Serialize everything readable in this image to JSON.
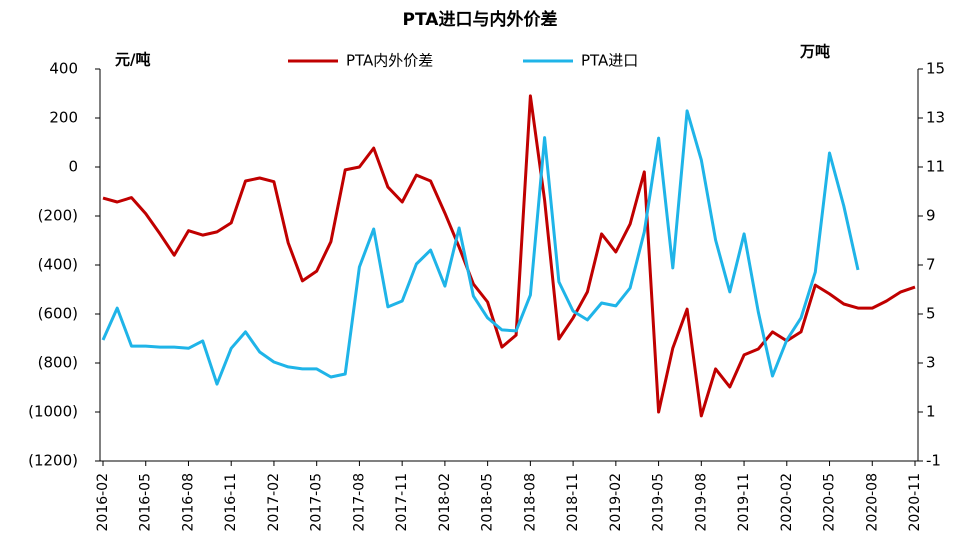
{
  "chart_data": {
    "type": "line",
    "title": "PTA进口与内外价差",
    "y_label": "元/吨",
    "y2_label": "万吨",
    "categories": [
      "2016-02",
      null,
      null,
      "2016-05",
      null,
      null,
      "2016-08",
      null,
      null,
      "2016-11",
      null,
      null,
      "2017-02",
      null,
      null,
      "2017-05",
      null,
      null,
      "2017-08",
      null,
      null,
      "2017-11",
      null,
      null,
      "2018-02",
      null,
      null,
      "2018-05",
      null,
      null,
      "2018-08",
      null,
      null,
      "2018-11",
      null,
      null,
      "2019-02",
      null,
      null,
      "2019-05",
      null,
      null,
      "2019-08",
      null,
      null,
      "2019-11",
      null,
      null,
      "2020-02",
      null,
      null,
      "2020-05",
      null,
      null,
      "2020-08",
      null,
      null,
      "2020-11"
    ],
    "series": [
      {
        "name": "PTA内外价差",
        "color": "#c00000",
        "values": [
          -127,
          -143,
          -125,
          -190,
          -273,
          -360,
          -260,
          -278,
          -265,
          -228,
          -57,
          -45,
          -60,
          -310,
          -465,
          -425,
          -305,
          -12,
          0,
          77,
          -82,
          -143,
          -33,
          -57,
          -188,
          -327,
          -478,
          -551,
          -735,
          -686,
          290,
          -135,
          -702,
          -616,
          -510,
          -273,
          -347,
          -233,
          -20,
          -1000,
          -739,
          -580,
          -1016,
          -824,
          -898,
          -767,
          -743,
          -673,
          -710,
          -673,
          -482,
          -518,
          -559,
          -576,
          -576,
          -547,
          -510,
          -490
        ]
      },
      {
        "name": "PTA进口",
        "color": "#1fb4e8",
        "axis": "y2",
        "values": [
          3.94,
          5.24,
          3.69,
          3.69,
          3.65,
          3.65,
          3.6,
          3.9,
          2.14,
          3.6,
          4.27,
          3.45,
          3.04,
          2.84,
          2.76,
          2.76,
          2.43,
          2.55,
          6.92,
          8.47,
          5.29,
          5.53,
          7.04,
          7.61,
          6.14,
          8.51,
          5.73,
          4.84,
          4.35,
          4.31,
          5.78,
          12.2,
          6.31,
          5.12,
          4.76,
          5.45,
          5.33,
          6.06,
          8.35,
          12.18,
          6.88,
          13.29,
          11.29,
          8.02,
          5.9,
          8.27,
          5.08,
          2.47,
          3.94,
          4.84,
          6.71,
          11.57,
          9.41,
          6.8,
          null,
          null,
          null,
          null
        ]
      }
    ],
    "ylim": [
      -1200,
      400
    ],
    "yticks": [
      {
        "value": -1200,
        "label": "(1200)"
      },
      {
        "value": -1000,
        "label": "(1000)"
      },
      {
        "value": -800,
        "label": "(800)"
      },
      {
        "value": -600,
        "label": "(600)"
      },
      {
        "value": -400,
        "label": "(400)"
      },
      {
        "value": -200,
        "label": "(200)"
      },
      0,
      200,
      400
    ],
    "y_negative_label_color": "#ff0000",
    "y2lim": [
      -1,
      15
    ],
    "y2ticks": [
      -1,
      1,
      3,
      5,
      7,
      9,
      11,
      13,
      15
    ],
    "legend": "top",
    "grid": false
  }
}
